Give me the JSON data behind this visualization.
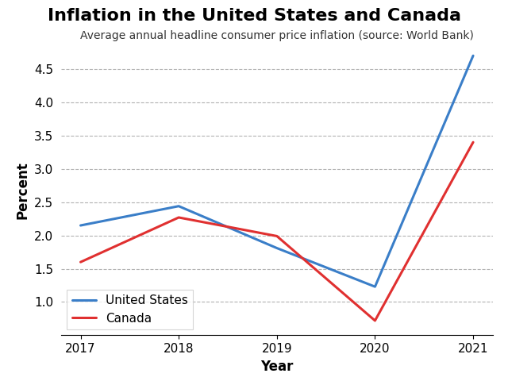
{
  "title": "Inflation in the United States and Canada",
  "subtitle": "Average annual headline consumer price inflation (source: World Bank)",
  "xlabel": "Year",
  "ylabel": "Percent",
  "years": [
    2017,
    2018,
    2019,
    2020,
    2021
  ],
  "us_values": [
    2.15,
    2.44,
    1.81,
    1.23,
    4.7
  ],
  "canada_values": [
    1.6,
    2.27,
    1.99,
    0.72,
    3.4
  ],
  "us_color": "#3a7ec8",
  "canada_color": "#e03030",
  "us_label": "United States",
  "canada_label": "Canada",
  "ylim": [
    0.5,
    4.85
  ],
  "yticks": [
    1.0,
    1.5,
    2.0,
    2.5,
    3.0,
    3.5,
    4.0,
    4.5
  ],
  "line_width": 2.2,
  "background_color": "#ffffff",
  "grid_color": "#aaaaaa",
  "title_fontsize": 16,
  "subtitle_fontsize": 10,
  "axis_label_fontsize": 12,
  "tick_fontsize": 11,
  "legend_fontsize": 11
}
